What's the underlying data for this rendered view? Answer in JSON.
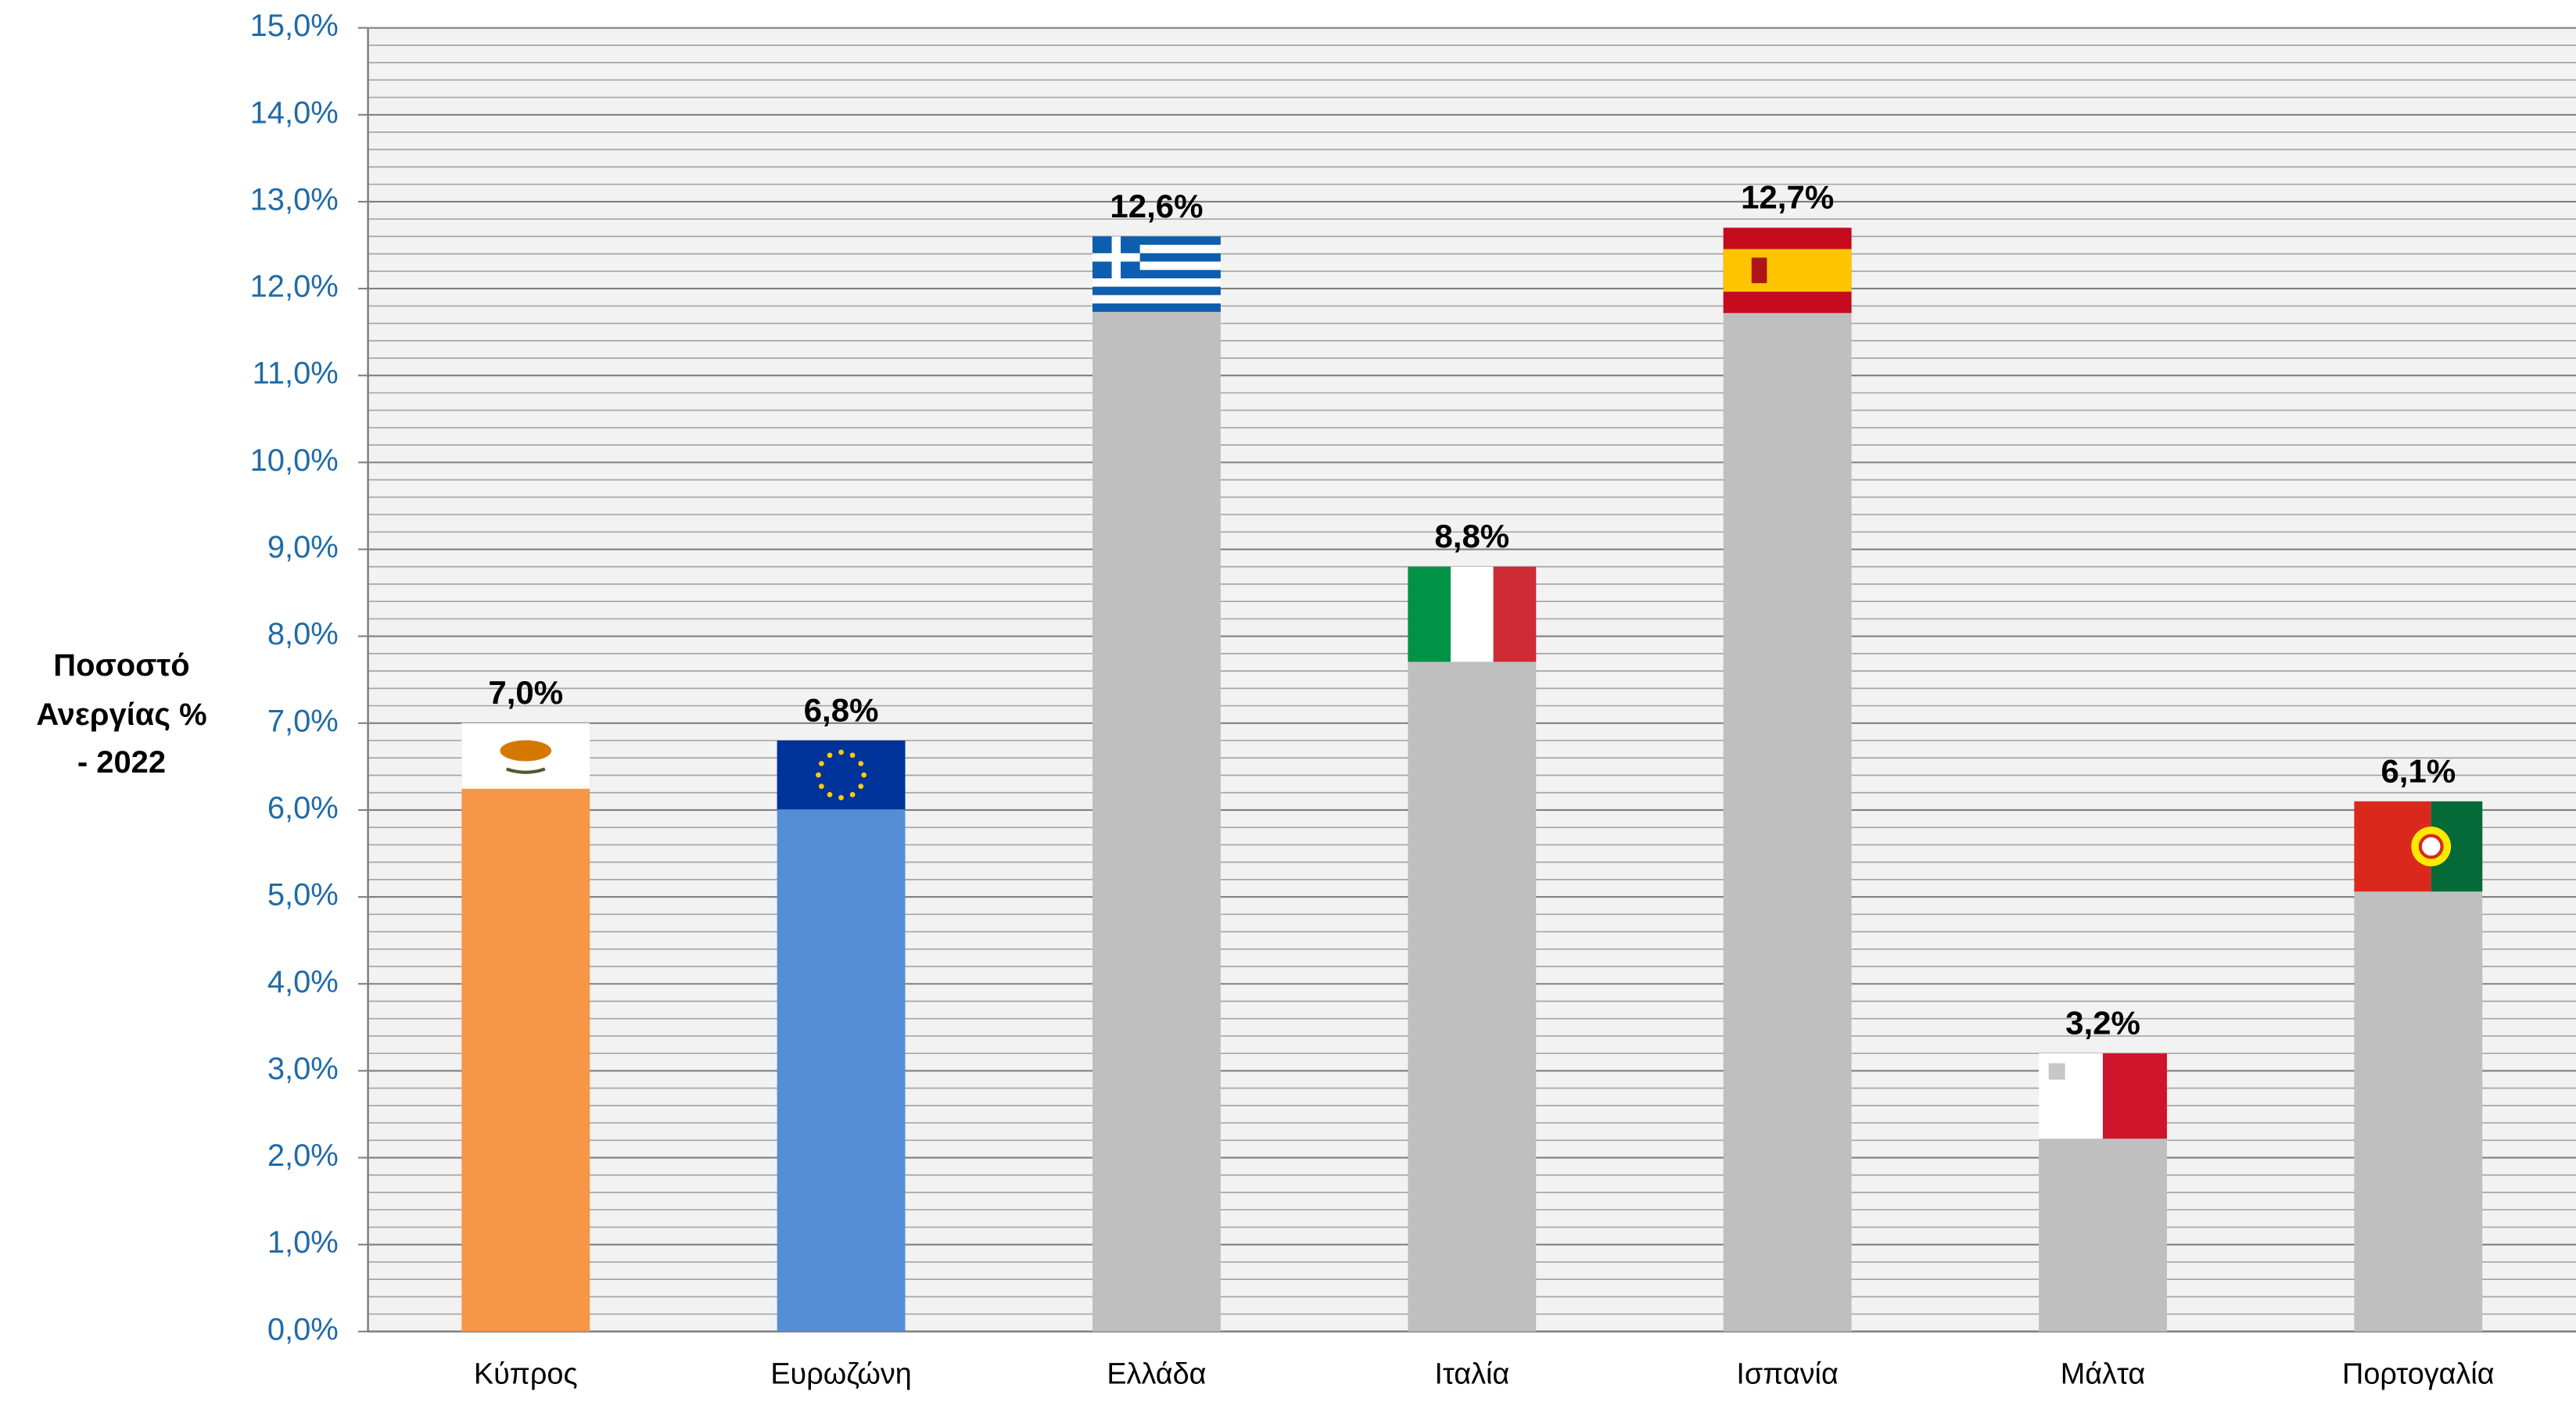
{
  "chart_data": {
    "type": "bar",
    "y_label": [
      "Ποσοστό",
      "Ανεργίας %",
      "- 2022"
    ],
    "categories": [
      "Κύπρος",
      "Ευρωζώνη",
      "Ελλάδα",
      "Ιταλία",
      "Ισπανία",
      "Μάλτα",
      "Πορτογαλία"
    ],
    "values": [
      7.0,
      6.8,
      12.6,
      8.8,
      12.7,
      3.2,
      6.1
    ],
    "value_labels": [
      "7,0%",
      "6,8%",
      "12,6%",
      "8,8%",
      "12,7%",
      "3,2%",
      "6,1%"
    ],
    "colors": [
      "#f79646",
      "#558ed5",
      "#bfbfbf",
      "#bfbfbf",
      "#bfbfbf",
      "#bfbfbf",
      "#bfbfbf"
    ],
    "ylim": [
      0,
      15
    ],
    "yticks": [
      {
        "value": 0,
        "label": "0,0%"
      },
      {
        "value": 1,
        "label": "1,0%"
      },
      {
        "value": 2,
        "label": "2,0%"
      },
      {
        "value": 3,
        "label": "3,0%"
      },
      {
        "value": 4,
        "label": "4,0%"
      },
      {
        "value": 5,
        "label": "5,0%"
      },
      {
        "value": 6,
        "label": "6,0%"
      },
      {
        "value": 7,
        "label": "7,0%"
      },
      {
        "value": 8,
        "label": "8,0%"
      },
      {
        "value": 9,
        "label": "9,0%"
      },
      {
        "value": 10,
        "label": "10,0%"
      },
      {
        "value": 11,
        "label": "11,0%"
      },
      {
        "value": 12,
        "label": "12,0%"
      },
      {
        "value": 13,
        "label": "13,0%"
      },
      {
        "value": 14,
        "label": "14,0%"
      },
      {
        "value": 15,
        "label": "15,0%"
      }
    ],
    "grid": true
  }
}
